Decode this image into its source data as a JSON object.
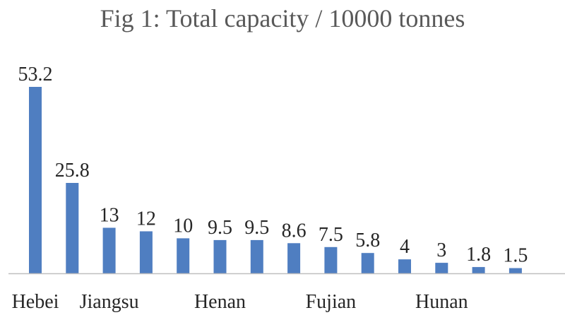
{
  "chart_data": {
    "type": "bar",
    "title": "Fig 1: Total capacity / 10000 tonnes",
    "categories": [
      "Hebei",
      "",
      "Jiangsu",
      "",
      "",
      "Henan",
      "",
      "",
      "Fujian",
      "",
      "",
      "Hunan",
      "",
      ""
    ],
    "values": [
      53.2,
      25.8,
      13,
      12,
      10,
      9.5,
      9.5,
      8.6,
      7.5,
      5.8,
      4,
      3,
      1.8,
      1.5
    ],
    "value_labels": [
      "53.2",
      "25.8",
      "13",
      "12",
      "10",
      "9.5",
      "9.5",
      "8.6",
      "7.5",
      "5.8",
      "4",
      "3",
      "1.8",
      "1.5"
    ],
    "ylim": [
      0,
      53.2
    ],
    "grid": false,
    "legend": "none",
    "bar_color": "#4f7ec1",
    "axis_color": "#bfbfbf"
  }
}
